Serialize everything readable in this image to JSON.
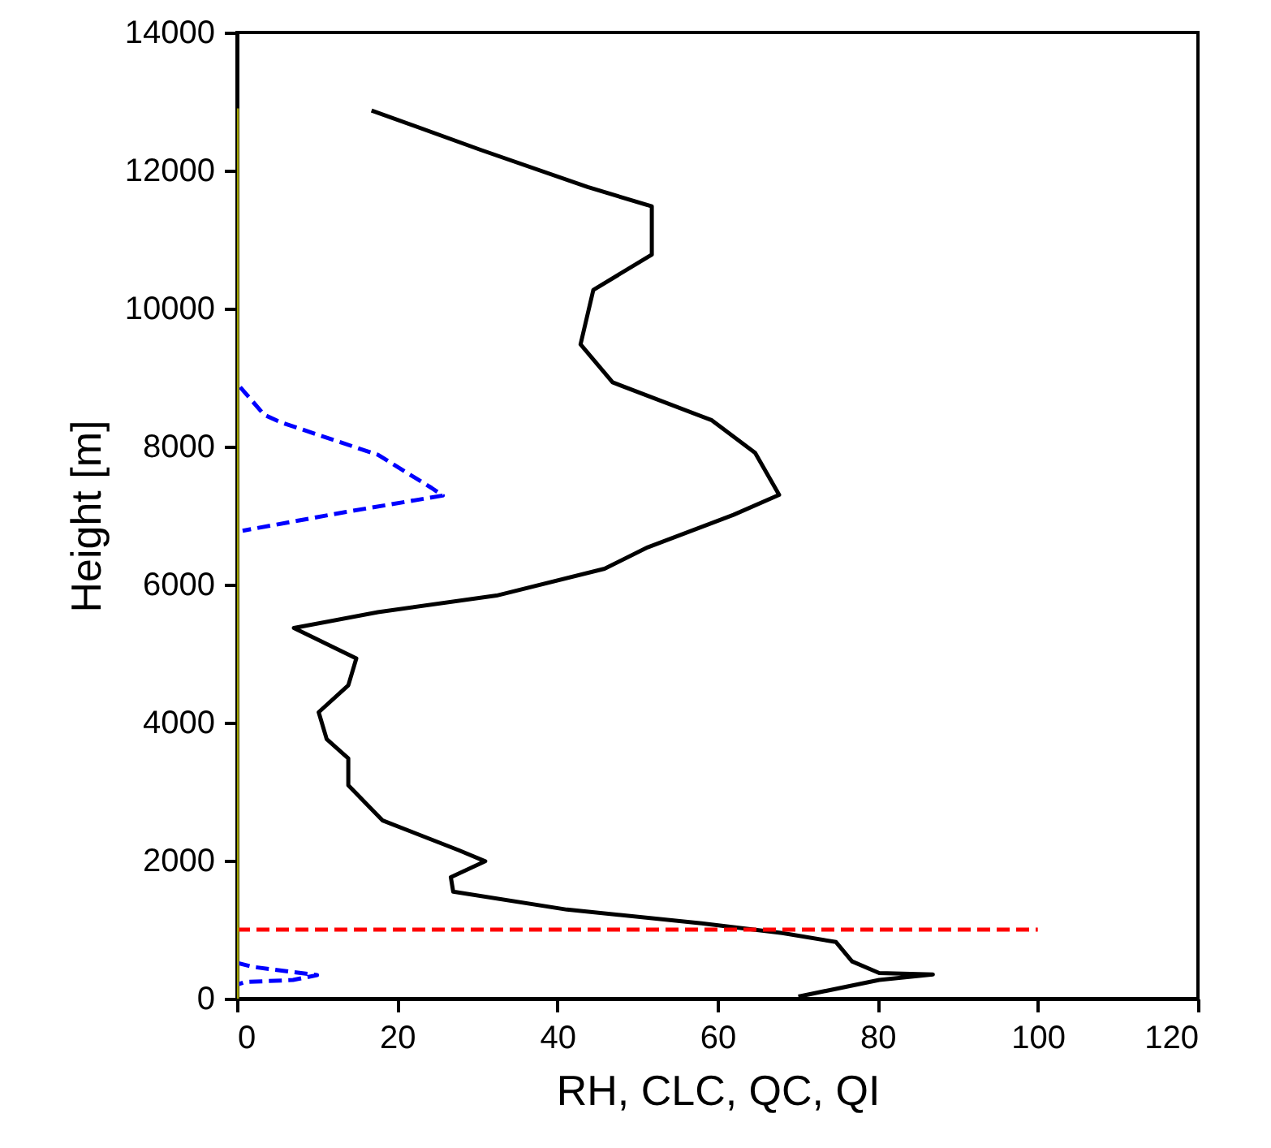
{
  "chart_data": {
    "type": "line",
    "xlabel": "RH, CLC, QC, QI",
    "ylabel": "Height [m]",
    "xlim": [
      0,
      120
    ],
    "xticks": [
      0,
      20,
      40,
      60,
      80,
      100,
      120
    ],
    "ylim": [
      0,
      14000
    ],
    "yticks": [
      0,
      2000,
      4000,
      6000,
      8000,
      10000,
      12000,
      14000
    ],
    "grid": false,
    "marker": "none",
    "series": [
      {
        "color": "#000000",
        "line_style": "solid",
        "x": [
          16.8,
          30.4,
          43.8,
          51.8,
          51.8,
          44.5,
          42.9,
          46.9,
          59.3,
          64.7,
          67.7,
          62.0,
          51.3,
          45.9,
          32.4,
          17.6,
          7.1,
          14.9,
          13.9,
          10.2,
          11.2,
          13.9,
          13.9,
          18.2,
          27.7,
          31.0,
          26.7,
          27.0,
          41.2,
          58.0,
          68.1,
          74.8,
          76.8,
          80.2,
          86.9,
          80.2,
          70.1
        ],
        "values": [
          12870,
          12300,
          11760,
          11480,
          10780,
          10270,
          9480,
          8930,
          8380,
          7910,
          7300,
          7010,
          6540,
          6230,
          5840,
          5600,
          5370,
          4930,
          4540,
          4150,
          3760,
          3480,
          3090,
          2580,
          2150,
          1990,
          1760,
          1550,
          1290,
          1090,
          950,
          820,
          540,
          370,
          350,
          270,
          30
        ]
      },
      {
        "color": "#0000ff",
        "line_style": "dashed",
        "x": [
          0.4,
          3.4,
          5.5,
          17.6,
          24.3,
          25.7,
          13.5,
          0.7
        ],
        "values": [
          8860,
          8460,
          8350,
          7880,
          7400,
          7290,
          7050,
          6780
        ]
      },
      {
        "color": "#0000ff",
        "line_style": "dashed",
        "x": [
          0,
          2,
          10,
          7,
          1,
          0
        ],
        "values": [
          520,
          460,
          340,
          270,
          240,
          200
        ]
      },
      {
        "color": "#ff0000",
        "line_style": "dashed",
        "x": [
          0,
          100
        ],
        "values": [
          1000,
          1000
        ]
      },
      {
        "color": "#a0a000",
        "line_style": "solid",
        "x": [
          0,
          0
        ],
        "values": [
          0,
          12900
        ]
      }
    ]
  }
}
